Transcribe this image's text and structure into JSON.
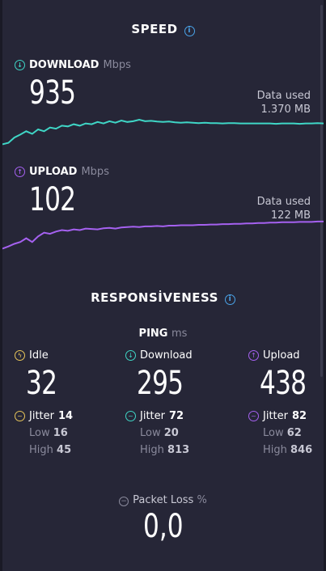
{
  "speed": {
    "title": "SPEED"
  },
  "download": {
    "label": "DOWNLOAD",
    "unit": "Mbps",
    "value": "935",
    "data_used_label": "Data used",
    "data_used_value": "1.370 MB",
    "color": "#3fd6c6",
    "curve": [
      0.1,
      0.14,
      0.28,
      0.36,
      0.45,
      0.38,
      0.5,
      0.45,
      0.55,
      0.52,
      0.6,
      0.58,
      0.64,
      0.6,
      0.66,
      0.64,
      0.7,
      0.66,
      0.72,
      0.68,
      0.74,
      0.7,
      0.72,
      0.76,
      0.72,
      0.73,
      0.71,
      0.7,
      0.71,
      0.69,
      0.68,
      0.69,
      0.68,
      0.67,
      0.68,
      0.67,
      0.67,
      0.66,
      0.67,
      0.67,
      0.66,
      0.66,
      0.66,
      0.66,
      0.66,
      0.66,
      0.65,
      0.66,
      0.66,
      0.66,
      0.65,
      0.66,
      0.66,
      0.67,
      0.66
    ]
  },
  "upload": {
    "label": "UPLOAD",
    "unit": "Mbps",
    "value": "102",
    "data_used_label": "Data used",
    "data_used_value": "122 MB",
    "color": "#a561f0",
    "curve": [
      0.12,
      0.18,
      0.25,
      0.3,
      0.4,
      0.3,
      0.45,
      0.55,
      0.52,
      0.58,
      0.62,
      0.6,
      0.64,
      0.62,
      0.66,
      0.65,
      0.64,
      0.67,
      0.68,
      0.66,
      0.69,
      0.7,
      0.71,
      0.7,
      0.72,
      0.72,
      0.73,
      0.72,
      0.74,
      0.74,
      0.75,
      0.75,
      0.75,
      0.76,
      0.76,
      0.77,
      0.77,
      0.78,
      0.78,
      0.79,
      0.79,
      0.8,
      0.8,
      0.81,
      0.81,
      0.82,
      0.82,
      0.83,
      0.83,
      0.83,
      0.84,
      0.84,
      0.84,
      0.85,
      0.85
    ]
  },
  "responsiveness": {
    "title": "RESPONSİVENESS"
  },
  "ping": {
    "title": "PING",
    "unit": "ms",
    "jitter_label": "Jitter",
    "low_label": "Low",
    "high_label": "High",
    "idle": {
      "label": "Idle",
      "value": "32",
      "jitter": "14",
      "low": "16",
      "high": "45",
      "color": "#e8c65a"
    },
    "download": {
      "label": "Download",
      "value": "295",
      "jitter": "72",
      "low": "20",
      "high": "813",
      "color": "#3fd6c6"
    },
    "upload": {
      "label": "Upload",
      "value": "438",
      "jitter": "82",
      "low": "62",
      "high": "846",
      "color": "#a561f0"
    }
  },
  "packet_loss": {
    "label": "Packet Loss",
    "unit": "%",
    "value": "0,0"
  }
}
